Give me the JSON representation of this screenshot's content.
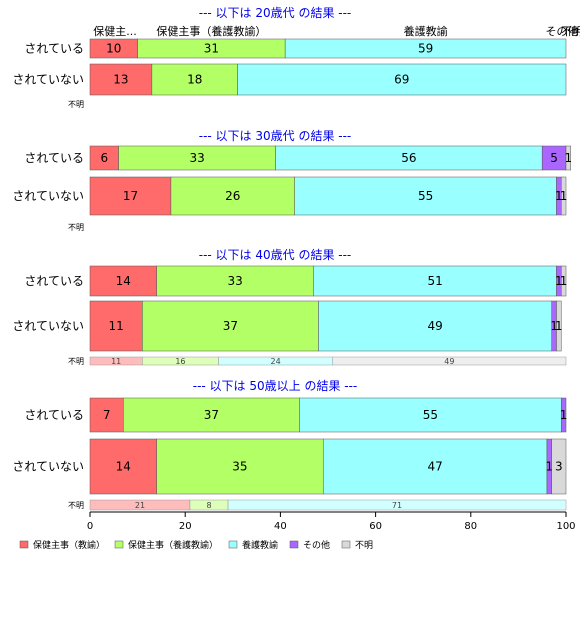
{
  "chart_data": {
    "type": "bar",
    "orientation": "horizontal",
    "stacked": true,
    "percent": true,
    "xlim": [
      0,
      100
    ],
    "xticks": [
      0,
      20,
      40,
      60,
      80,
      100
    ],
    "categories": [
      "保健主事（教諭）",
      "保健主事（養護教諭）",
      "養護教諭",
      "その他",
      "不明"
    ],
    "colors": [
      "#ff6b6b",
      "#b3ff66",
      "#99ffff",
      "#aa66ff",
      "#d9d9d9"
    ],
    "header_labels": [
      "保健主...",
      "保健主事（養護教諭）",
      "養護教諭",
      "その他",
      "不明"
    ],
    "groups": [
      {
        "title": "--- 以下は 20歳代 の結果 ---",
        "rows": [
          {
            "label": "されている",
            "values": [
              10,
              31,
              59,
              0,
              0
            ],
            "value_labels": [
              "10",
              "31",
              "59",
              "",
              ""
            ]
          },
          {
            "label": "されていない",
            "values": [
              13,
              18,
              69,
              0,
              0
            ],
            "value_labels": [
              "13",
              "18",
              "69",
              "",
              ""
            ]
          }
        ],
        "unknown_row": {
          "label": "不明",
          "values": [],
          "value_labels": []
        }
      },
      {
        "title": "--- 以下は 30歳代 の結果 ---",
        "rows": [
          {
            "label": "されている",
            "values": [
              6,
              33,
              56,
              5,
              1
            ],
            "value_labels": [
              "6",
              "33",
              "56",
              "5",
              "1"
            ]
          },
          {
            "label": "されていない",
            "values": [
              17,
              26,
              55,
              1,
              1
            ],
            "value_labels": [
              "17",
              "26",
              "55",
              "1",
              "1"
            ]
          }
        ],
        "unknown_row": {
          "label": "不明",
          "values": [],
          "value_labels": []
        }
      },
      {
        "title": "--- 以下は 40歳代 の結果 ---",
        "rows": [
          {
            "label": "されている",
            "values": [
              14,
              33,
              51,
              1,
              1
            ],
            "value_labels": [
              "14",
              "33",
              "51",
              "1",
              "1"
            ]
          },
          {
            "label": "されていない",
            "values": [
              11,
              37,
              49,
              1,
              1
            ],
            "value_labels": [
              "11",
              "37",
              "49",
              "1",
              "1"
            ]
          }
        ],
        "unknown_row": {
          "label": "不明",
          "values": [
            11,
            16,
            24,
            0,
            49
          ],
          "value_labels": [
            "11",
            "16",
            "24",
            "",
            "49"
          ]
        }
      },
      {
        "title": "--- 以下は 50歳以上 の結果 ---",
        "rows": [
          {
            "label": "されている",
            "values": [
              7,
              37,
              55,
              1,
              0
            ],
            "value_labels": [
              "7",
              "37",
              "55",
              "1",
              ""
            ]
          },
          {
            "label": "されていない",
            "values": [
              14,
              35,
              47,
              1,
              3
            ],
            "value_labels": [
              "14",
              "35",
              "47",
              "1",
              "3"
            ]
          }
        ],
        "unknown_row": {
          "label": "不明",
          "values": [
            21,
            8,
            71,
            0,
            0
          ],
          "value_labels": [
            "21",
            "8",
            "71",
            "",
            ""
          ]
        }
      }
    ],
    "legend": {
      "position": "bottom-left",
      "items": [
        "保健主事（教諭）",
        "保健主事（養護教諭）",
        "養護教諭",
        "その他",
        "不明"
      ]
    }
  }
}
